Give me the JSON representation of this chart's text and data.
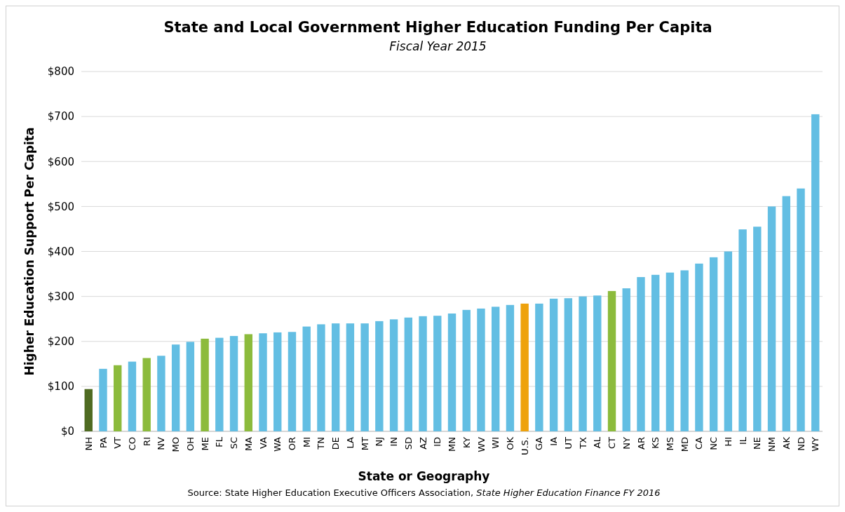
{
  "chart_data": {
    "type": "bar",
    "title": "State and Local Government Higher Education Funding Per Capita",
    "subtitle": "Fiscal Year 2015",
    "xlabel": "State or Geography",
    "ylabel": "Higher Education Support Per Capita",
    "annotations": [
      "Source: State Higher Education Executive Officers Association, State Higher Education Finance FY 2016"
    ],
    "categories": [
      "NH",
      "PA",
      "VT",
      "CO",
      "RI",
      "NV",
      "MO",
      "OH",
      "ME",
      "FL",
      "SC",
      "MA",
      "VA",
      "WA",
      "OR",
      "MI",
      "TN",
      "DE",
      "LA",
      "MT",
      "NJ",
      "IN",
      "SD",
      "AZ",
      "ID",
      "MN",
      "KY",
      "WV",
      "WI",
      "OK",
      "U.S.",
      "GA",
      "IA",
      "UT",
      "TX",
      "AL",
      "CT",
      "NY",
      "AR",
      "KS",
      "MS",
      "MD",
      "CA",
      "NC",
      "HI",
      "IL",
      "NE",
      "NM",
      "AK",
      "ND",
      "WY"
    ],
    "values": [
      94,
      139,
      147,
      155,
      163,
      168,
      193,
      199,
      206,
      208,
      212,
      216,
      218,
      220,
      221,
      233,
      238,
      240,
      240,
      240,
      245,
      249,
      253,
      256,
      257,
      262,
      270,
      273,
      277,
      281,
      284,
      284,
      295,
      296,
      300,
      302,
      312,
      318,
      343,
      348,
      353,
      358,
      373,
      387,
      400,
      449,
      455,
      500,
      523,
      540,
      705
    ],
    "colors": [
      "#4f6b22",
      "#63bee3",
      "#8cbb3c",
      "#63bee3",
      "#8cbb3c",
      "#63bee3",
      "#63bee3",
      "#63bee3",
      "#8cbb3c",
      "#63bee3",
      "#63bee3",
      "#8cbb3c",
      "#63bee3",
      "#63bee3",
      "#63bee3",
      "#63bee3",
      "#63bee3",
      "#63bee3",
      "#63bee3",
      "#63bee3",
      "#63bee3",
      "#63bee3",
      "#63bee3",
      "#63bee3",
      "#63bee3",
      "#63bee3",
      "#63bee3",
      "#63bee3",
      "#63bee3",
      "#63bee3",
      "#eea20c",
      "#63bee3",
      "#63bee3",
      "#63bee3",
      "#63bee3",
      "#63bee3",
      "#8cbb3c",
      "#63bee3",
      "#63bee3",
      "#63bee3",
      "#63bee3",
      "#63bee3",
      "#63bee3",
      "#63bee3",
      "#63bee3",
      "#63bee3",
      "#63bee3",
      "#63bee3",
      "#63bee3",
      "#63bee3",
      "#63bee3"
    ],
    "ylim": [
      0,
      800
    ],
    "yticks": [
      {
        "value": 0,
        "label": "$0"
      },
      {
        "value": 100,
        "label": "$100"
      },
      {
        "value": 200,
        "label": "$200"
      },
      {
        "value": 300,
        "label": "$300"
      },
      {
        "value": 400,
        "label": "$400"
      },
      {
        "value": 500,
        "label": "$500"
      },
      {
        "value": 600,
        "label": "$600"
      },
      {
        "value": 700,
        "label": "$700"
      },
      {
        "value": 800,
        "label": "$800"
      }
    ],
    "grid": "y"
  }
}
